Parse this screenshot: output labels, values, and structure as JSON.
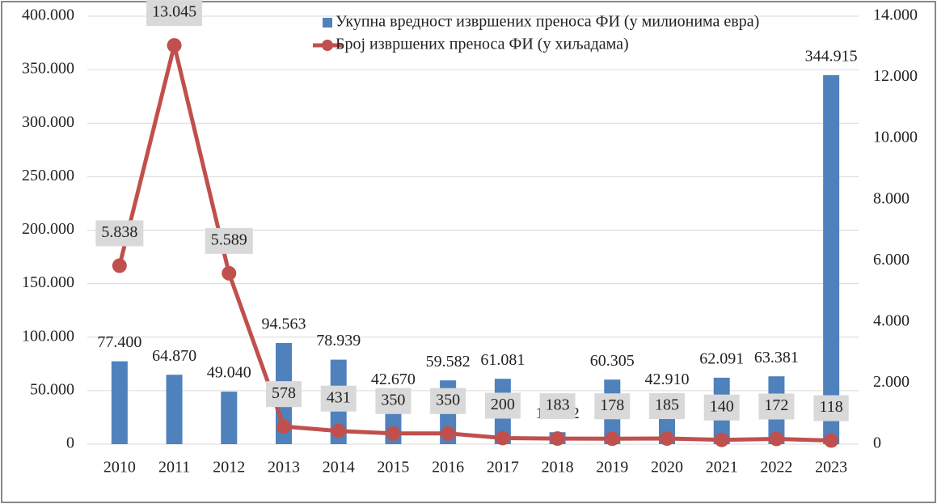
{
  "chart_data": {
    "type": "bar-line",
    "categories": [
      "2010",
      "2011",
      "2012",
      "2013",
      "2014",
      "2015",
      "2016",
      "2017",
      "2018",
      "2019",
      "2020",
      "2021",
      "2022",
      "2023"
    ],
    "series": [
      {
        "name": "Укупна вредност извршених преноса ФИ (у милионима евра)",
        "type": "bar",
        "color": "#4f81bd",
        "values": [
          77400,
          64870,
          49040,
          94563,
          78939,
          42670,
          59582,
          61081,
          11172,
          60305,
          42910,
          62091,
          63381,
          344915
        ],
        "value_labels": [
          "77.400",
          "64.870",
          "49.040",
          "94.563",
          "78.939",
          "42.670",
          "59.582",
          "61.081",
          "11.172",
          "60.305",
          "42.910",
          "62.091",
          "63.381",
          "344.915"
        ]
      },
      {
        "name": "Број извршених преноса ФИ (у хиљадама)",
        "type": "line",
        "axis": "y2",
        "color": "#c0504d",
        "values": [
          5838,
          13045,
          5589,
          578,
          431,
          350,
          350,
          200,
          183,
          178,
          185,
          140,
          172,
          118
        ],
        "value_labels": [
          "5.838",
          "13.045",
          "5.589",
          "578",
          "431",
          "350",
          "350",
          "200",
          "183",
          "178",
          "185",
          "140",
          "172",
          "118"
        ]
      }
    ],
    "ylim": [
      0,
      400000
    ],
    "yticks": [
      0,
      {
        "value": 50000,
        "label": "50.000"
      },
      {
        "value": 100000,
        "label": "100.000"
      },
      {
        "value": 150000,
        "label": "150.000"
      },
      {
        "value": 200000,
        "label": "200.000"
      },
      {
        "value": 250000,
        "label": "250.000"
      },
      {
        "value": 300000,
        "label": "300.000"
      },
      {
        "value": 350000,
        "label": "350.000"
      },
      {
        "value": 400000,
        "label": "400.000"
      }
    ],
    "y2lim": [
      0,
      14000
    ],
    "y2ticks": [
      0,
      {
        "value": 2000,
        "label": "2.000"
      },
      {
        "value": 4000,
        "label": "4.000"
      },
      {
        "value": 6000,
        "label": "6.000"
      },
      {
        "value": 8000,
        "label": "8.000"
      },
      {
        "value": 10000,
        "label": "10.000"
      },
      {
        "value": 12000,
        "label": "12.000"
      },
      {
        "value": 14000,
        "label": "14.000"
      }
    ],
    "grid": true,
    "legend": "top-right"
  }
}
